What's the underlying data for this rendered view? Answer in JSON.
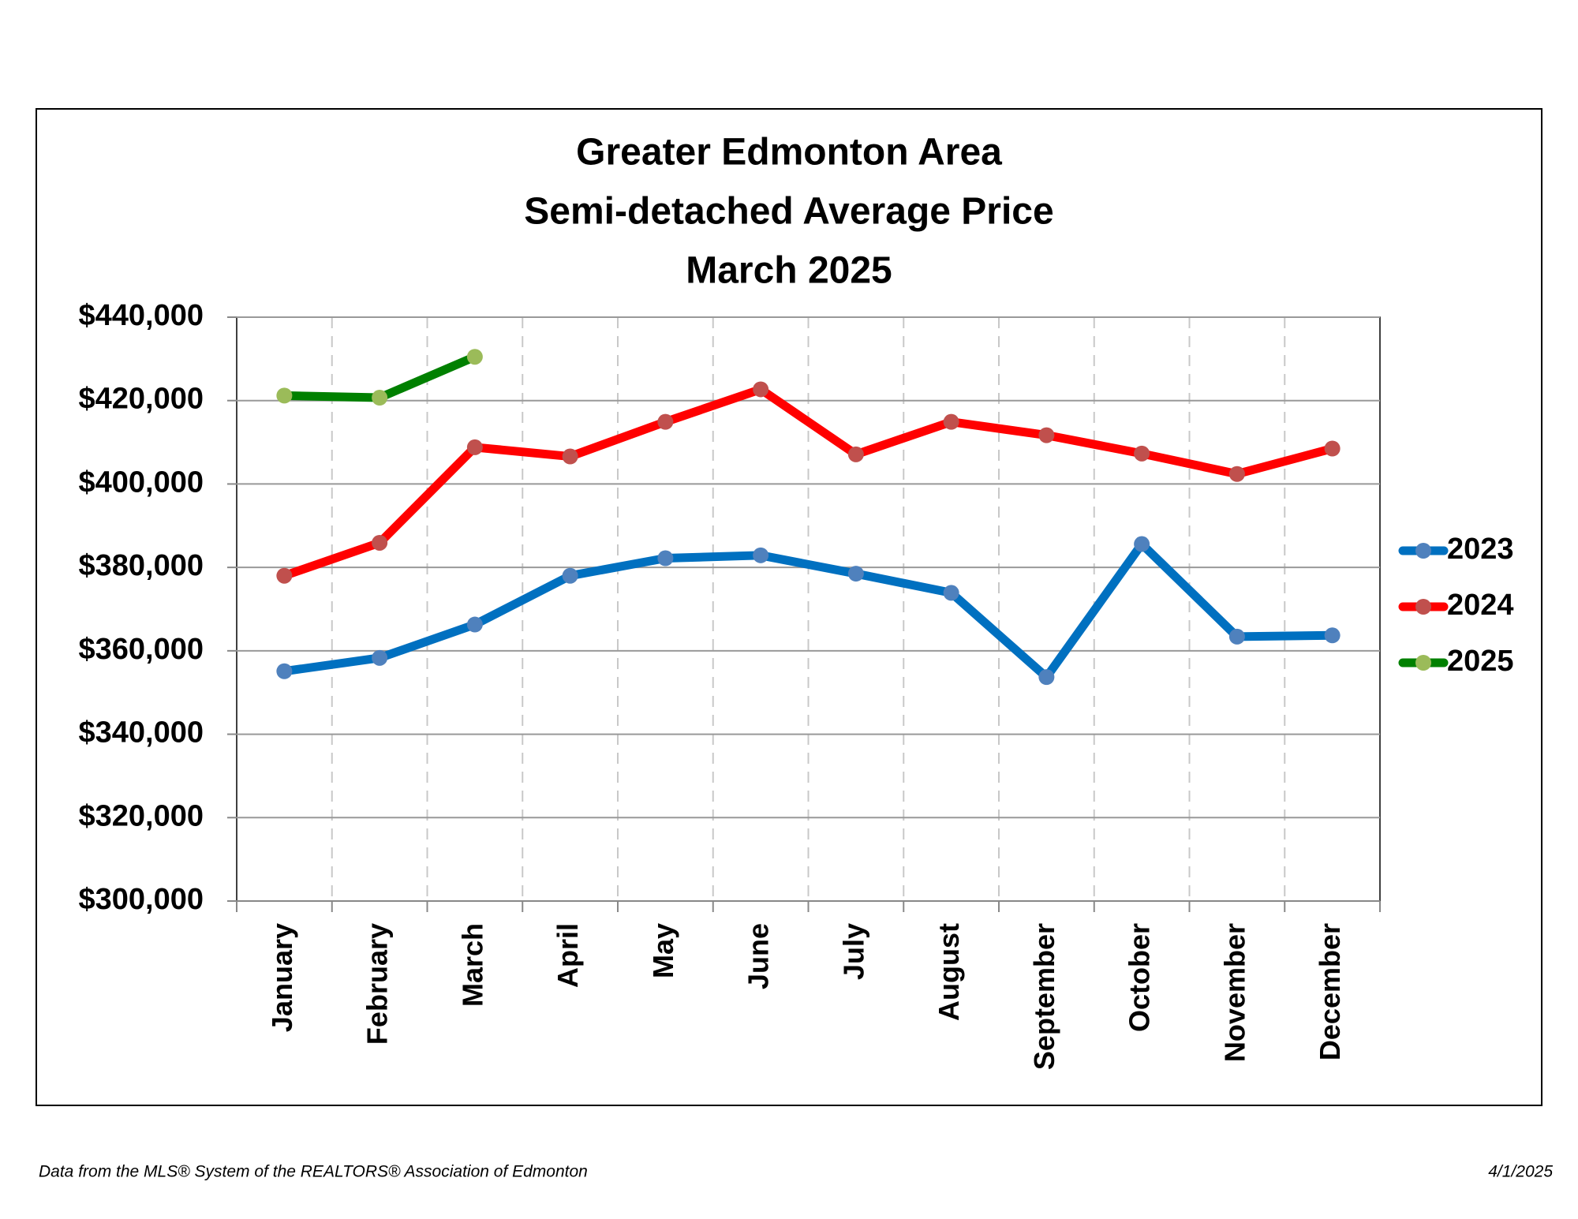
{
  "chart_data": {
    "type": "line",
    "title": [
      "Greater Edmonton Area",
      "Semi-detached Average Price",
      "March 2025"
    ],
    "categories": [
      "January",
      "February",
      "March",
      "April",
      "May",
      "June",
      "July",
      "August",
      "September",
      "October",
      "November",
      "December"
    ],
    "series": [
      {
        "name": "2023",
        "color": "#0070c0",
        "marker_color": "#4f81bd",
        "values": [
          355100,
          358300,
          366300,
          378000,
          382200,
          382900,
          378500,
          373900,
          353700,
          385600,
          363400,
          363700
        ]
      },
      {
        "name": "2024",
        "color": "#ff0000",
        "marker_color": "#c0504d",
        "values": [
          378000,
          385900,
          408800,
          406600,
          414900,
          422700,
          407100,
          414900,
          411700,
          407300,
          402400,
          408500
        ]
      },
      {
        "name": "2025",
        "color": "#008000",
        "marker_color": "#9bbb59",
        "values": [
          421200,
          420700,
          430500,
          null,
          null,
          null,
          null,
          null,
          null,
          null,
          null,
          null
        ]
      }
    ],
    "ylim": [
      300000,
      440000
    ],
    "yticks": [
      {
        "value": 300000,
        "label": "$300,000"
      },
      {
        "value": 320000,
        "label": "$320,000"
      },
      {
        "value": 340000,
        "label": "$340,000"
      },
      {
        "value": 360000,
        "label": "$360,000"
      },
      {
        "value": 380000,
        "label": "$380,000"
      },
      {
        "value": 400000,
        "label": "$400,000"
      },
      {
        "value": 420000,
        "label": "$420,000"
      },
      {
        "value": 440000,
        "label": "$440,000"
      }
    ],
    "grid": true,
    "legend": "right"
  },
  "footer": {
    "source": "Data from the MLS® System of the REALTORS® Association of Edmonton",
    "date": "4/1/2025"
  }
}
